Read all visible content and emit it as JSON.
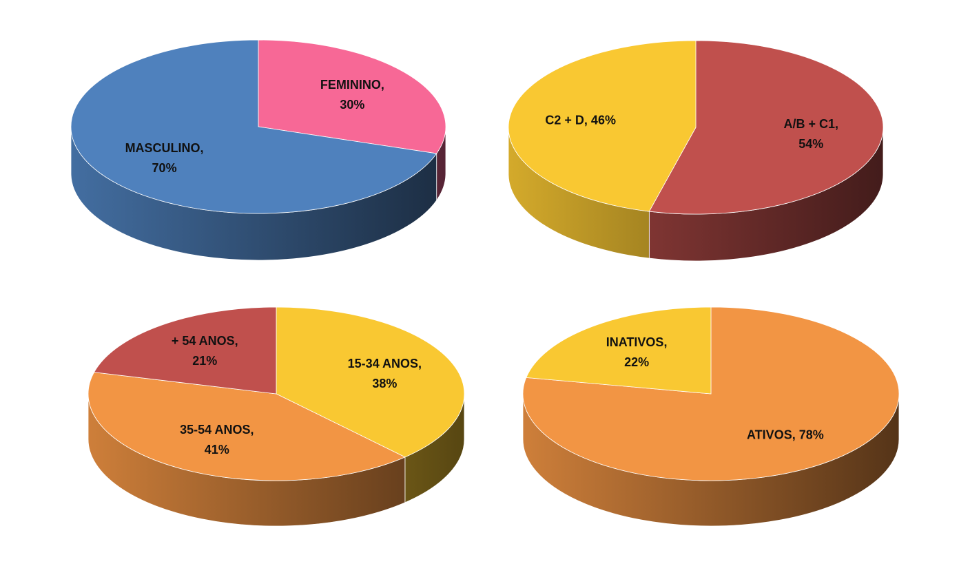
{
  "chart_data": [
    {
      "type": "pie",
      "values": [
        30,
        70
      ],
      "value_labels": [
        "FEMININO,\n30%",
        "MASCULINO,\n70%"
      ],
      "colors": [
        "#f76896",
        "#4f81bd"
      ]
    },
    {
      "type": "pie",
      "values": [
        54,
        46
      ],
      "value_labels": [
        "A/B + C1,\n54%",
        "C2 + D, 46%"
      ],
      "colors": [
        "#c0504d",
        "#f9c832"
      ]
    },
    {
      "type": "pie",
      "values": [
        38,
        41,
        21
      ],
      "value_labels": [
        "15-34 ANOS,\n38%",
        "35-54 ANOS,\n41%",
        "+ 54 ANOS,\n21%"
      ],
      "colors": [
        "#f9c832",
        "#f29544",
        "#c0504d"
      ]
    },
    {
      "type": "pie",
      "values": [
        78,
        22
      ],
      "value_labels": [
        "ATIVOS, 78%",
        "INATIVOS,\n22%"
      ],
      "colors": [
        "#f29544",
        "#f9c832"
      ]
    }
  ]
}
